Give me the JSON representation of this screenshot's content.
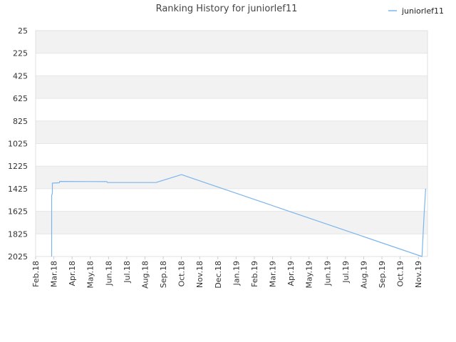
{
  "chart_data": {
    "type": "line",
    "title": "Ranking History for juniorlef11",
    "xlabel": "",
    "ylabel": "",
    "y_reversed": true,
    "ylim": [
      25,
      2025
    ],
    "y_ticks": [
      "25",
      "225",
      "425",
      "625",
      "825",
      "1025",
      "1225",
      "1425",
      "1625",
      "1825",
      "2025"
    ],
    "x_tick_labels": [
      "Feb.18",
      "Mar.18",
      "Apr.18",
      "May.18",
      "Jun.18",
      "Jul.18",
      "Aug.18",
      "Sep.18",
      "Oct.18",
      "Nov.18",
      "Dec.18",
      "Jan.19",
      "Feb.19",
      "Mar.19",
      "Apr.19",
      "May.19",
      "Jun.19",
      "Jul.19",
      "Aug.19",
      "Sep.19",
      "Oct.19",
      "Nov.19"
    ],
    "xlim": [
      0,
      21.5
    ],
    "grid": "alternating horizontal bands",
    "legend_position": "top-right",
    "colors": {
      "series": "#7cb5ec",
      "band": "#f2f2f2",
      "grid": "#e6e6e6"
    },
    "series": [
      {
        "name": "juniorlef11",
        "points": [
          [
            0.88,
            2025
          ],
          [
            0.88,
            1485
          ],
          [
            0.92,
            1465
          ],
          [
            0.92,
            1375
          ],
          [
            1.3,
            1372
          ],
          [
            1.32,
            1360
          ],
          [
            3.9,
            1362
          ],
          [
            3.95,
            1370
          ],
          [
            6.6,
            1370
          ],
          [
            8.0,
            1300
          ],
          [
            21.2,
            2025
          ],
          [
            21.3,
            1690
          ],
          [
            21.4,
            1425
          ]
        ]
      }
    ]
  }
}
